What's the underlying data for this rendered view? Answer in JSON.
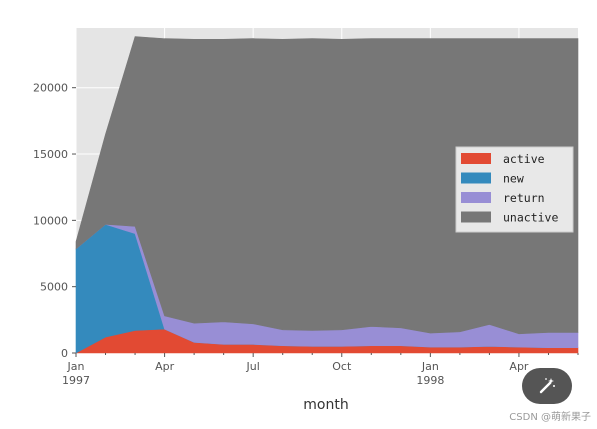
{
  "chart_data": {
    "type": "area",
    "stacked": true,
    "xlabel": "month",
    "ylabel": "",
    "ylim": [
      0,
      24500
    ],
    "yticks": [
      0,
      5000,
      10000,
      15000,
      20000
    ],
    "xtick_labels": [
      {
        "index": 0,
        "line1": "Jan",
        "line2": "1997"
      },
      {
        "index": 3,
        "line1": "Apr",
        "line2": ""
      },
      {
        "index": 6,
        "line1": "Jul",
        "line2": ""
      },
      {
        "index": 9,
        "line1": "Oct",
        "line2": ""
      },
      {
        "index": 12,
        "line1": "Jan",
        "line2": "1998"
      },
      {
        "index": 15,
        "line1": "Apr",
        "line2": ""
      }
    ],
    "x": [
      "1997-01",
      "1997-02",
      "1997-03",
      "1997-04",
      "1997-05",
      "1997-06",
      "1997-07",
      "1997-08",
      "1997-09",
      "1997-10",
      "1997-11",
      "1997-12",
      "1998-01",
      "1998-02",
      "1998-03",
      "1998-04",
      "1998-05",
      "1998-06"
    ],
    "grid": true,
    "legend_position": "right",
    "series": [
      {
        "name": "active",
        "color": "#E24A33",
        "values": [
          0,
          1200,
          1700,
          1800,
          800,
          650,
          650,
          550,
          500,
          500,
          550,
          550,
          450,
          450,
          500,
          450,
          400,
          400
        ]
      },
      {
        "name": "new",
        "color": "#348ABD",
        "values": [
          7850,
          8500,
          7300,
          0,
          0,
          0,
          0,
          0,
          0,
          0,
          0,
          0,
          0,
          0,
          0,
          0,
          0,
          0
        ]
      },
      {
        "name": "return",
        "color": "#988ED5",
        "values": [
          0,
          0,
          550,
          1000,
          1450,
          1700,
          1550,
          1200,
          1200,
          1250,
          1450,
          1350,
          1050,
          1150,
          1650,
          1000,
          1150,
          1150
        ]
      },
      {
        "name": "unactive",
        "color": "#777777",
        "values": [
          550,
          6800,
          14300,
          20900,
          21400,
          21300,
          21500,
          21900,
          22000,
          21900,
          21700,
          21800,
          22200,
          22100,
          21550,
          22250,
          22150,
          22150
        ]
      }
    ]
  },
  "watermark": "CSDN @萌新果子",
  "fab_icon": "magic-wand-icon"
}
